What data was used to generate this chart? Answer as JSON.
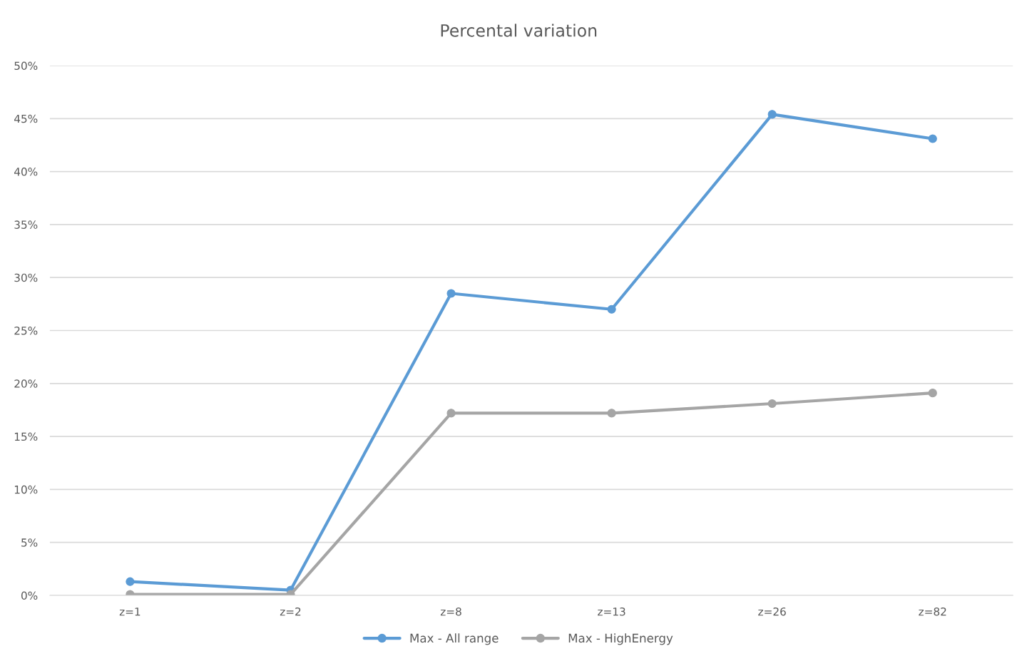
{
  "chart_data": {
    "type": "line",
    "title": "Percental variation",
    "categories": [
      "z=1",
      "z=2",
      "z=8",
      "z=13",
      "z=26",
      "z=82"
    ],
    "series": [
      {
        "name": "Max - All range",
        "color": "#5b9bd5",
        "values": [
          1.3,
          0.5,
          28.5,
          27.0,
          45.4,
          43.1
        ]
      },
      {
        "name": "Max - HighEnergy",
        "color": "#a5a5a5",
        "values": [
          0.1,
          0.1,
          17.2,
          17.2,
          18.1,
          19.1
        ]
      }
    ],
    "ylim": [
      0,
      50
    ],
    "yticks": [
      {
        "value": 0,
        "label": "0%"
      },
      {
        "value": 5,
        "label": "5%"
      },
      {
        "value": 10,
        "label": "10%"
      },
      {
        "value": 15,
        "label": "15%"
      },
      {
        "value": 20,
        "label": "20%"
      },
      {
        "value": 25,
        "label": "25%"
      },
      {
        "value": 30,
        "label": "30%"
      },
      {
        "value": 35,
        "label": "35%"
      },
      {
        "value": 40,
        "label": "40%"
      },
      {
        "value": 45,
        "label": "45%"
      },
      {
        "value": 50,
        "label": "50%"
      }
    ],
    "grid": "y",
    "legend": "bottom",
    "marker": "circle",
    "line_style": "solid"
  }
}
